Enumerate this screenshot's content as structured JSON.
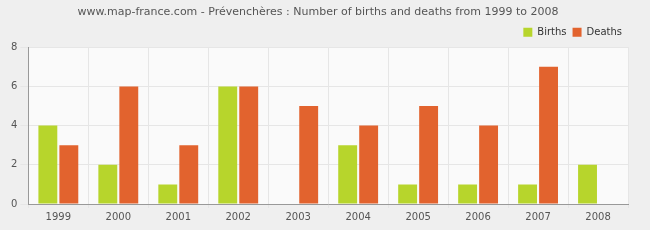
{
  "chart_data": {
    "type": "bar",
    "title": "www.map-france.com - Prévenchères : Number of births and deaths from 1999 to 2008",
    "categories": [
      "1999",
      "2000",
      "2001",
      "2002",
      "2003",
      "2004",
      "2005",
      "2006",
      "2007",
      "2008"
    ],
    "series": [
      {
        "name": "Births",
        "color": "#b7d52c",
        "values": [
          4,
          2,
          1,
          6,
          0,
          3,
          1,
          1,
          1,
          2
        ]
      },
      {
        "name": "Deaths",
        "color": "#e2632e",
        "values": [
          3,
          6,
          3,
          6,
          5,
          4,
          5,
          4,
          7,
          0
        ]
      }
    ],
    "ylim": [
      0,
      8
    ],
    "yticks": [
      0,
      2,
      4,
      6,
      8
    ],
    "grid": true,
    "legend": "upper right"
  }
}
